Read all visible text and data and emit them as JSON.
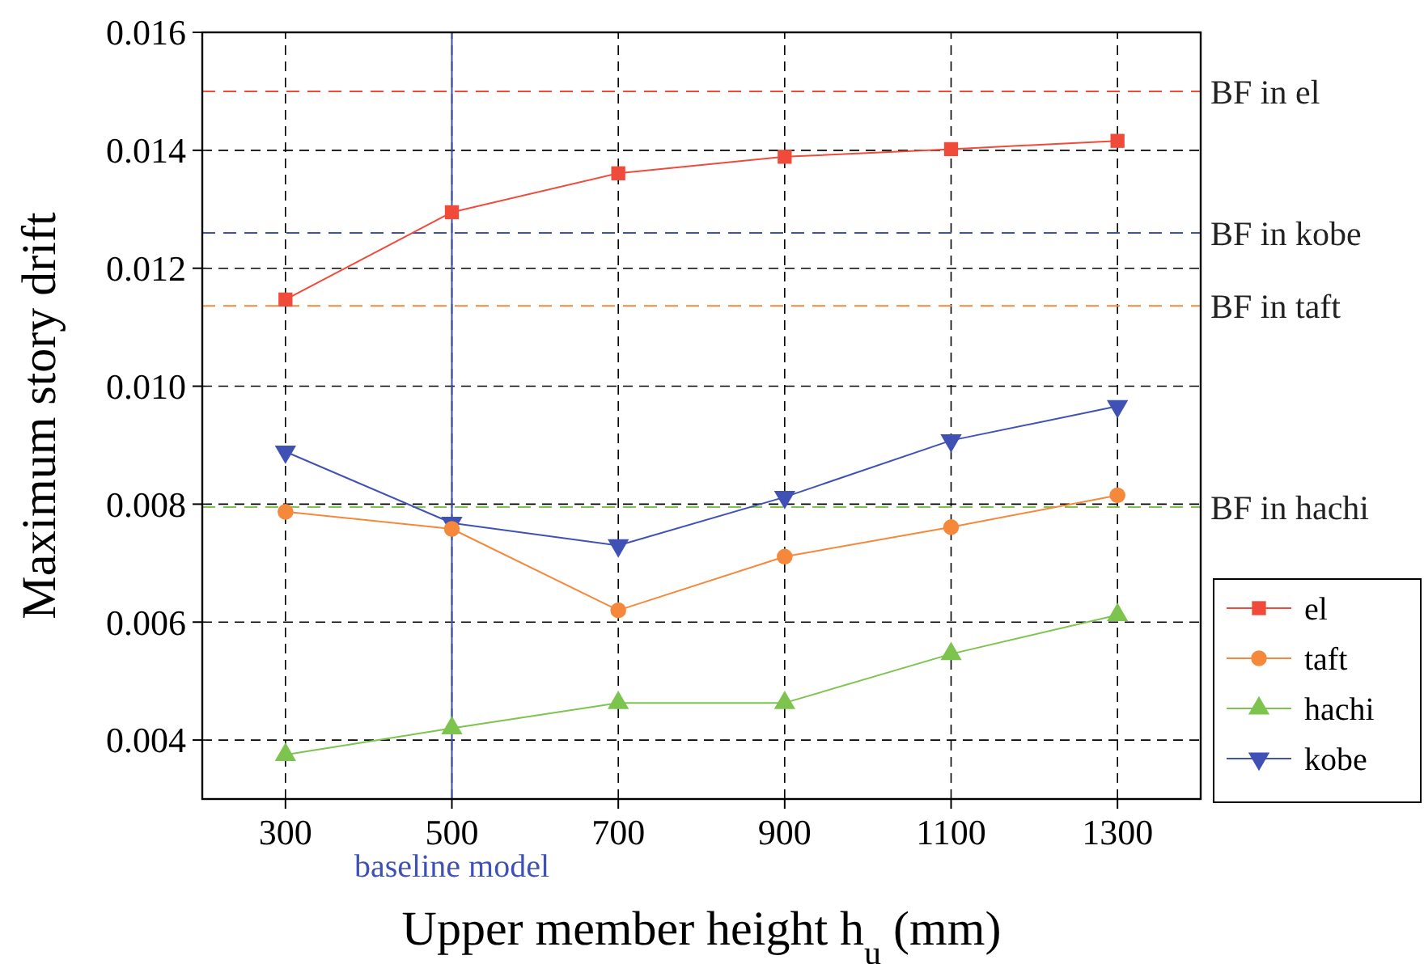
{
  "chart_data": {
    "type": "line",
    "xlabel": "Upper member height h$_{u}$ (mm)",
    "ylabel": "Maximum story drift",
    "x": [
      300,
      500,
      700,
      900,
      1100,
      1300
    ],
    "xlim": [
      200,
      1400
    ],
    "xticks": [
      300,
      500,
      700,
      900,
      1100,
      1300
    ],
    "ylim": [
      0.003,
      0.016
    ],
    "yticks": [
      {
        "value": 0.004,
        "label": "0.004"
      },
      {
        "value": 0.006,
        "label": "0.006"
      },
      {
        "value": 0.008,
        "label": "0.008"
      },
      {
        "value": 0.01,
        "label": "0.010"
      },
      {
        "value": 0.012,
        "label": "0.012"
      },
      {
        "value": 0.014,
        "label": "0.014"
      },
      {
        "value": 0.016,
        "label": "0.016"
      }
    ],
    "grid": true,
    "legend": "bottom right",
    "series": [
      {
        "name": "el",
        "color": "#f04a3a",
        "marker": "square",
        "values": [
          0.01147,
          0.01295,
          0.01361,
          0.01389,
          0.01402,
          0.01416
        ]
      },
      {
        "name": "taft",
        "color": "#f5883a",
        "marker": "circle",
        "values": [
          0.00787,
          0.00758,
          0.0062,
          0.00711,
          0.00761,
          0.00815
        ]
      },
      {
        "name": "hachi",
        "color": "#7cc44e",
        "marker": "triangle",
        "values": [
          0.00375,
          0.0042,
          0.00463,
          0.00463,
          0.00546,
          0.00612
        ]
      },
      {
        "name": "kobe",
        "color": "#3f51b5",
        "marker": "triangle-down",
        "values": [
          0.00889,
          0.00768,
          0.0073,
          0.00812,
          0.00908,
          0.00966
        ]
      }
    ],
    "ref_lines": [
      {
        "axis": "y",
        "value": 0.015,
        "label": "BF in el",
        "color": "#f04a3a",
        "line_style": "dashed"
      },
      {
        "axis": "y",
        "value": 0.0126,
        "label": "BF in kobe",
        "color": "#3f51b5",
        "line_style": "dashed"
      },
      {
        "axis": "y",
        "value": 0.01136,
        "label": "BF in taft",
        "color": "#f5883a",
        "line_style": "dashed"
      },
      {
        "axis": "y",
        "value": 0.00795,
        "label": "BF in hachi",
        "color": "#7cc44e",
        "line_style": "dashed"
      },
      {
        "axis": "x",
        "value": 500,
        "label": "baseline model",
        "color": "#3f51b5",
        "line_style": "solid"
      }
    ]
  }
}
